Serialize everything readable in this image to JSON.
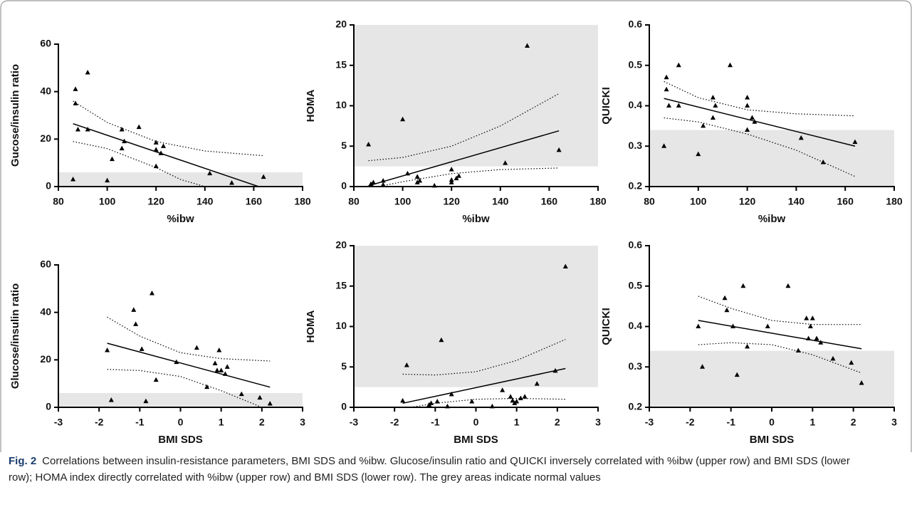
{
  "chart_data": [
    {
      "type": "scatter",
      "xlabel": "%ibw",
      "ylabel": "Gucose/insulin ratio",
      "xlim": [
        80,
        180
      ],
      "ylim": [
        0,
        60
      ],
      "xticks": [
        80,
        100,
        120,
        140,
        160,
        180
      ],
      "yticks": [
        0,
        20,
        40,
        60
      ],
      "color": "#000000",
      "shade": [
        0,
        6
      ],
      "shade_color": "#e6e6e6",
      "x": [
        87,
        87,
        88,
        92,
        92,
        86,
        100,
        102,
        106,
        106,
        107,
        113,
        120,
        120,
        120,
        122,
        123,
        142,
        151,
        164
      ],
      "y": [
        41,
        35,
        24,
        48,
        24,
        3,
        2.5,
        11.5,
        24,
        16,
        19,
        25,
        18.5,
        15.5,
        8.5,
        14,
        17,
        5.5,
        1.5,
        4
      ],
      "fit": {
        "x": [
          86,
          162
        ],
        "y": [
          26.5,
          0
        ]
      },
      "ci_upper": {
        "x": [
          86,
          100,
          120,
          140,
          164
        ],
        "y": [
          36,
          27,
          19,
          15,
          13
        ]
      },
      "ci_lower": {
        "x": [
          86,
          100,
          120,
          130,
          140
        ],
        "y": [
          19,
          16,
          8,
          3,
          0
        ]
      }
    },
    {
      "type": "scatter",
      "xlabel": "%ibw",
      "ylabel": "HOMA",
      "xlim": [
        80,
        180
      ],
      "ylim": [
        0,
        20
      ],
      "xticks": [
        80,
        100,
        120,
        140,
        160,
        180
      ],
      "yticks": [
        0,
        5,
        10,
        15,
        20
      ],
      "color": "#000000",
      "shade": [
        2.5,
        20
      ],
      "shade_color": "#e6e6e6",
      "x": [
        86,
        87,
        88,
        92,
        92,
        100,
        102,
        106,
        106,
        107,
        113,
        120,
        120,
        120,
        122,
        123,
        142,
        151,
        164,
        87
      ],
      "y": [
        5.2,
        0.3,
        0.5,
        0.7,
        0.2,
        8.3,
        1.6,
        1.2,
        0.5,
        0.7,
        0.1,
        2.1,
        0.8,
        0.5,
        1,
        1.3,
        2.9,
        17.4,
        4.5,
        0.2
      ],
      "fit": {
        "x": [
          86,
          164
        ],
        "y": [
          0.1,
          6.9
        ]
      },
      "ci_upper": {
        "x": [
          86,
          100,
          120,
          140,
          164
        ],
        "y": [
          3.2,
          3.6,
          5,
          7.5,
          11.5
        ]
      },
      "ci_lower": {
        "x": [
          90,
          100,
          120,
          140,
          164
        ],
        "y": [
          0,
          0.6,
          1.6,
          2.1,
          2.3
        ]
      }
    },
    {
      "type": "scatter",
      "xlabel": "%ibw",
      "ylabel": "QUICKI",
      "xlim": [
        80,
        180
      ],
      "ylim": [
        0.2,
        0.6
      ],
      "xticks": [
        80,
        100,
        120,
        140,
        160,
        180
      ],
      "yticks": [
        0.2,
        0.3,
        0.4,
        0.5,
        0.6
      ],
      "color": "#000000",
      "shade": [
        0.2,
        0.34
      ],
      "shade_color": "#e6e6e6",
      "x": [
        86,
        87,
        87,
        88,
        92,
        92,
        100,
        102,
        106,
        106,
        107,
        113,
        120,
        120,
        120,
        122,
        123,
        142,
        151,
        164
      ],
      "y": [
        0.3,
        0.47,
        0.44,
        0.4,
        0.5,
        0.4,
        0.28,
        0.35,
        0.42,
        0.37,
        0.4,
        0.5,
        0.42,
        0.4,
        0.34,
        0.37,
        0.36,
        0.32,
        0.26,
        0.31
      ],
      "fit": {
        "x": [
          86,
          164
        ],
        "y": [
          0.418,
          0.3
        ]
      },
      "ci_upper": {
        "x": [
          86,
          100,
          120,
          140,
          164
        ],
        "y": [
          0.46,
          0.42,
          0.39,
          0.38,
          0.375
        ]
      },
      "ci_lower": {
        "x": [
          86,
          100,
          120,
          140,
          164
        ],
        "y": [
          0.37,
          0.36,
          0.33,
          0.29,
          0.225
        ]
      }
    },
    {
      "type": "scatter",
      "xlabel": "BMI SDS",
      "ylabel": "Glucose/insulin ratio",
      "xlim": [
        -3,
        3
      ],
      "ylim": [
        0,
        60
      ],
      "xticks": [
        -3,
        -2,
        -1,
        0,
        1,
        2,
        3
      ],
      "yticks": [
        0,
        20,
        40,
        60
      ],
      "color": "#000000",
      "shade": [
        0,
        6
      ],
      "shade_color": "#e6e6e6",
      "x": [
        -1.8,
        -1.7,
        -1.15,
        -1.1,
        -0.95,
        -0.85,
        -0.7,
        -0.6,
        -0.1,
        0.4,
        0.65,
        0.85,
        0.9,
        0.95,
        1,
        1.1,
        1.15,
        1.5,
        1.95,
        2.2
      ],
      "y": [
        24,
        3,
        41,
        35,
        24.5,
        2.5,
        48,
        11.5,
        19,
        25,
        8.5,
        18.5,
        15.5,
        24,
        15.5,
        14,
        17,
        5.5,
        4,
        1.5
      ],
      "fit": {
        "x": [
          -1.8,
          2.2
        ],
        "y": [
          27,
          8.5
        ]
      },
      "ci_upper": {
        "x": [
          -1.8,
          -1,
          0,
          1,
          2.2
        ],
        "y": [
          38,
          30,
          23,
          20.5,
          19.5
        ]
      },
      "ci_lower": {
        "x": [
          -1.8,
          -1,
          0,
          1,
          2
        ],
        "y": [
          16,
          15.5,
          13,
          7,
          0
        ]
      }
    },
    {
      "type": "scatter",
      "xlabel": "BMI SDS",
      "ylabel": "HOMA",
      "xlim": [
        -3,
        3
      ],
      "ylim": [
        0,
        20
      ],
      "xticks": [
        -3,
        -2,
        -1,
        0,
        1,
        2,
        3
      ],
      "yticks": [
        0,
        5,
        10,
        15,
        20
      ],
      "color": "#000000",
      "shade": [
        2.5,
        20
      ],
      "shade_color": "#e6e6e6",
      "x": [
        -1.8,
        -1.7,
        -1.15,
        -1.1,
        -0.95,
        -0.85,
        -0.7,
        -0.6,
        -0.1,
        0.4,
        0.65,
        0.85,
        0.9,
        0.95,
        1,
        1.1,
        1.2,
        1.5,
        1.95,
        2.2
      ],
      "y": [
        0.8,
        5.2,
        0.3,
        0.5,
        0.7,
        8.3,
        0.1,
        1.6,
        0.7,
        0.1,
        2.1,
        1.3,
        0.8,
        0.5,
        0.7,
        1.1,
        1.3,
        2.9,
        4.5,
        17.4
      ],
      "fit": {
        "x": [
          -1.8,
          2.2
        ],
        "y": [
          0.5,
          4.8
        ]
      },
      "ci_upper": {
        "x": [
          -1.8,
          -1,
          0,
          1,
          2.2
        ],
        "y": [
          4.1,
          4,
          4.4,
          5.8,
          8.4
        ]
      },
      "ci_lower": {
        "x": [
          -1.6,
          -1,
          0,
          1,
          2.2
        ],
        "y": [
          0,
          0.5,
          1,
          1.1,
          1
        ]
      }
    },
    {
      "type": "scatter",
      "xlabel": "BMI SDS",
      "ylabel": "QUICKI",
      "xlim": [
        -3,
        3
      ],
      "ylim": [
        0.2,
        0.6
      ],
      "xticks": [
        -3,
        -2,
        -1,
        0,
        1,
        2,
        3
      ],
      "yticks": [
        0.2,
        0.3,
        0.4,
        0.5,
        0.6
      ],
      "color": "#000000",
      "shade": [
        0.2,
        0.34
      ],
      "shade_color": "#e6e6e6",
      "x": [
        -1.8,
        -1.7,
        -1.15,
        -1.1,
        -0.95,
        -0.85,
        -0.7,
        -0.6,
        -0.1,
        0.4,
        0.65,
        0.85,
        0.9,
        0.95,
        1,
        1.1,
        1.2,
        1.5,
        1.95,
        2.2
      ],
      "y": [
        0.4,
        0.3,
        0.47,
        0.44,
        0.4,
        0.28,
        0.5,
        0.35,
        0.4,
        0.5,
        0.34,
        0.42,
        0.37,
        0.4,
        0.42,
        0.37,
        0.36,
        0.32,
        0.31,
        0.26
      ],
      "fit": {
        "x": [
          -1.8,
          2.2
        ],
        "y": [
          0.415,
          0.345
        ]
      },
      "ci_upper": {
        "x": [
          -1.8,
          -1,
          0,
          1,
          2.2
        ],
        "y": [
          0.475,
          0.445,
          0.415,
          0.405,
          0.405
        ]
      },
      "ci_lower": {
        "x": [
          -1.8,
          -1,
          0,
          1,
          2.2
        ],
        "y": [
          0.355,
          0.36,
          0.355,
          0.33,
          0.285
        ]
      }
    }
  ],
  "caption": {
    "label": "Fig. 2",
    "text": "Correlations between insulin-resistance parameters, BMI SDS and %ibw. Glucose/insulin ratio and QUICKI inversely correlated with %ibw (upper row) and BMI SDS (lower row); HOMA index directly correlated with %ibw (upper row) and BMI SDS (lower row). The grey areas indicate normal values"
  }
}
